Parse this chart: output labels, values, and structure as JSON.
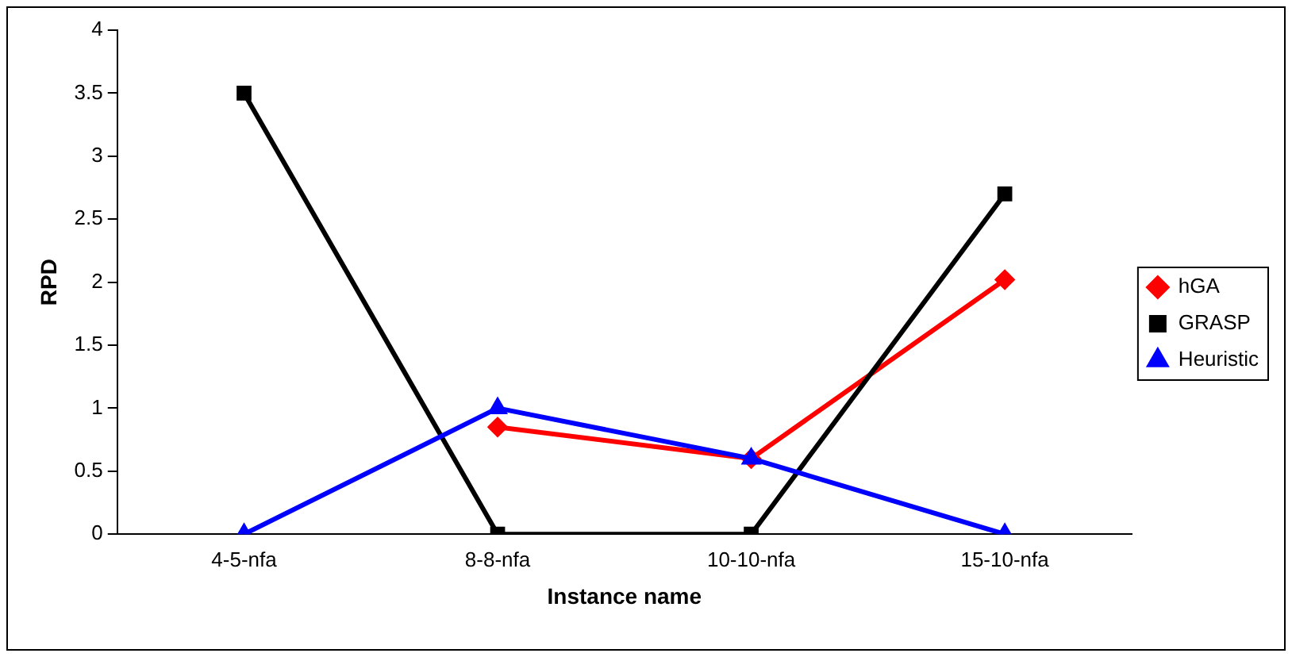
{
  "chart_data": {
    "type": "line",
    "xlabel": "Instance name",
    "ylabel": "RPD",
    "categories": [
      "4-5-nfa",
      "8-8-nfa",
      "10-10-nfa",
      "15-10-nfa"
    ],
    "series": [
      {
        "name": "hGA",
        "color": "#ff0000",
        "marker": "diamond",
        "values": [
          null,
          0.85,
          0.6,
          2.02
        ]
      },
      {
        "name": "GRASP",
        "color": "#000000",
        "marker": "square",
        "values": [
          3.5,
          0,
          0,
          2.7
        ]
      },
      {
        "name": "Heuristic",
        "color": "#0000ff",
        "marker": "triangle",
        "values": [
          0,
          1,
          0.6,
          0
        ]
      }
    ],
    "ylim": [
      0,
      4
    ],
    "yticks": [
      0,
      0.5,
      1,
      1.5,
      2,
      2.5,
      3,
      3.5,
      4
    ],
    "grid": false,
    "legend": "right",
    "line_style": "solid"
  }
}
